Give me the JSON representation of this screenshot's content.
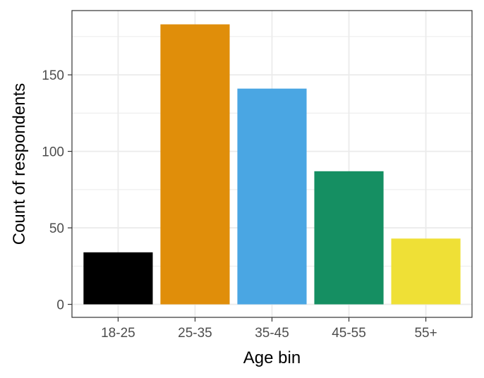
{
  "chart_data": {
    "type": "bar",
    "title": "",
    "xlabel": "Age bin",
    "ylabel": "Count of respondents",
    "categories": [
      "18-25",
      "25-35",
      "35-45",
      "45-55",
      "55+"
    ],
    "values": [
      34,
      183,
      141,
      87,
      43
    ],
    "colors": [
      "#000000",
      "#e08e0a",
      "#4aa6e3",
      "#158f62",
      "#efe036"
    ],
    "ylim": [
      -8.5,
      192
    ],
    "yticks": [
      0,
      50,
      100,
      150
    ],
    "ytick_labels": [
      "0",
      "50",
      "100",
      "150"
    ],
    "grid": true,
    "legend": "none",
    "theme": "bw"
  }
}
